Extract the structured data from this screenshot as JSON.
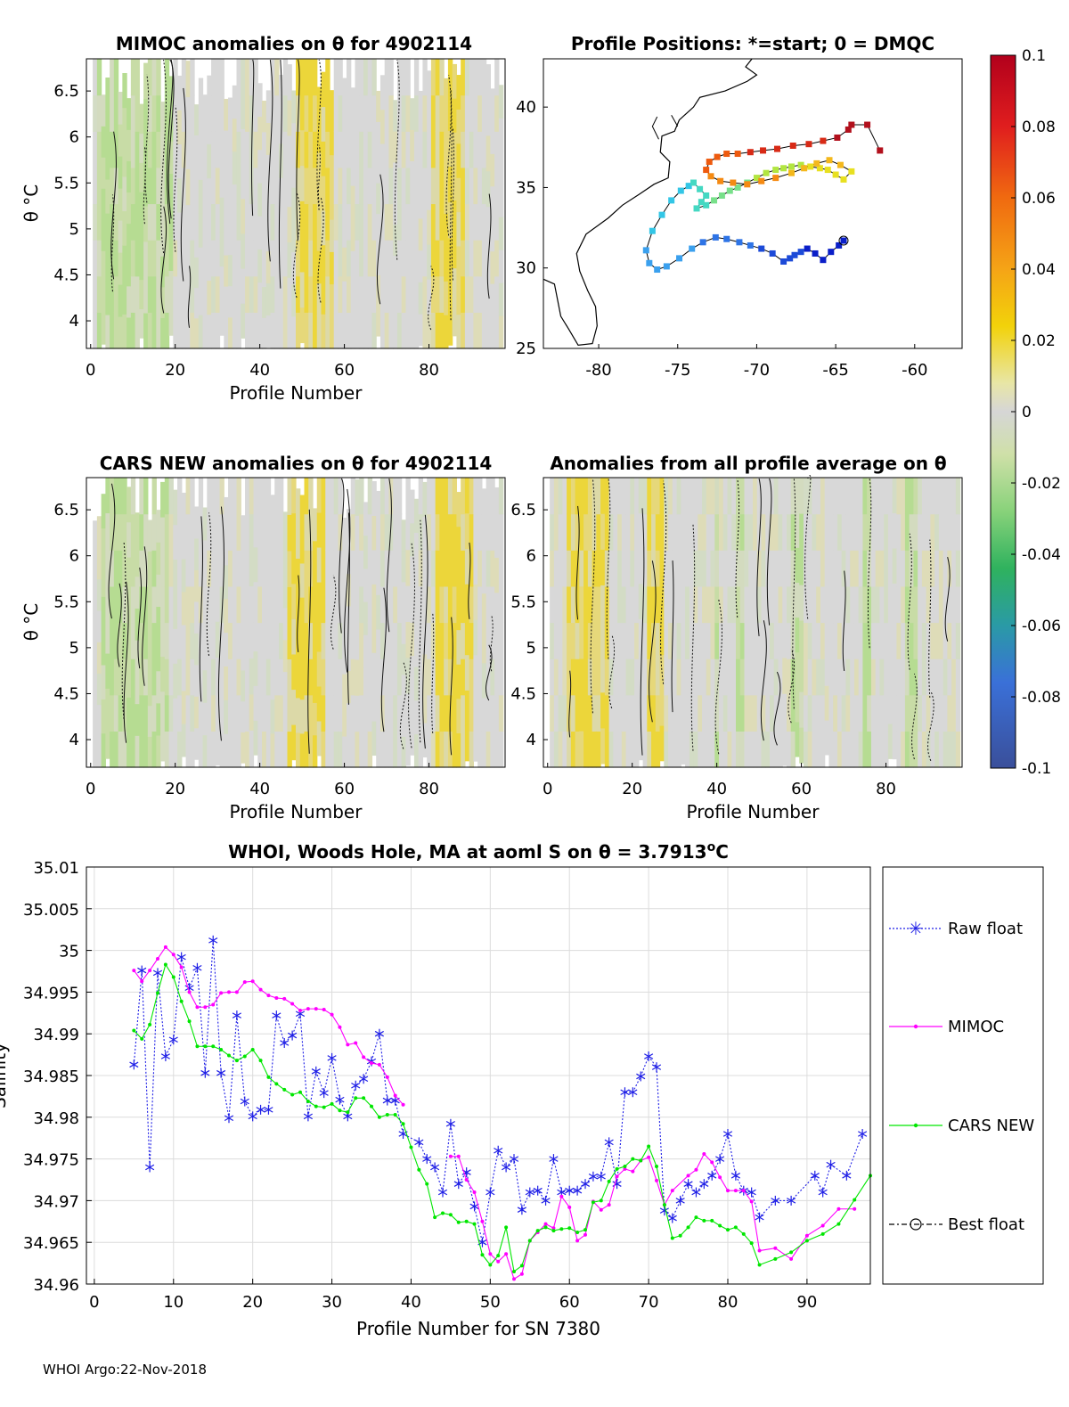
{
  "footer": "WHOI Argo:22-Nov-2018",
  "chart_data": [
    {
      "type": "heatmap",
      "id": "mimoc",
      "title": "MIMOC anomalies on θ  for 4902114",
      "xlabel": "Profile Number",
      "ylabel": "θ °C",
      "xlim": [
        -1,
        98
      ],
      "ylim": [
        3.7,
        6.85
      ],
      "xticks": [
        0,
        20,
        40,
        60,
        80
      ],
      "yticks": [
        4,
        4.5,
        5,
        5.5,
        6,
        6.5
      ],
      "warm_columns": [
        49,
        50,
        51,
        52,
        53,
        54,
        55,
        56,
        57,
        81,
        82,
        83,
        84,
        85,
        86,
        87,
        88
      ],
      "cool_columns": [
        2,
        3,
        4,
        5,
        6,
        7,
        8,
        9,
        10,
        11,
        12,
        13,
        14,
        15,
        16,
        17,
        18,
        19
      ]
    },
    {
      "type": "heatmap",
      "id": "cars",
      "title": "CARS NEW anomalies on θ for 4902114",
      "xlabel": "Profile Number",
      "ylabel": "θ °C",
      "xlim": [
        -1,
        98
      ],
      "ylim": [
        3.7,
        6.85
      ],
      "xticks": [
        0,
        20,
        40,
        60,
        80
      ],
      "yticks": [
        4,
        4.5,
        5,
        5.5,
        6,
        6.5
      ],
      "warm_columns": [
        47,
        48,
        49,
        50,
        51,
        52,
        53,
        54,
        55,
        82,
        83,
        84,
        85,
        86,
        87,
        88,
        89,
        90
      ],
      "cool_columns": [
        3,
        4,
        5,
        6,
        7,
        8,
        9,
        10,
        11,
        12,
        13,
        14,
        15,
        16,
        17,
        18
      ]
    },
    {
      "type": "heatmap",
      "id": "allprof",
      "title": "Anomalies from all profile average on θ",
      "xlabel": "Profile Number",
      "ylabel": "",
      "xlim": [
        -1,
        98
      ],
      "ylim": [
        3.7,
        6.85
      ],
      "xticks": [
        0,
        20,
        40,
        60,
        80
      ],
      "yticks": [
        4,
        4.5,
        5,
        5.5,
        6,
        6.5
      ],
      "warm_columns": [
        5,
        6,
        7,
        8,
        9,
        10,
        11,
        12,
        13,
        14,
        24,
        25,
        26,
        27
      ],
      "cool_columns": [
        40,
        45,
        46,
        58,
        59,
        60,
        75,
        76,
        85,
        86,
        87
      ]
    },
    {
      "type": "scatter",
      "id": "map",
      "title": "Profile Positions: *=start; 0 = DMQC",
      "xlim": [
        -83.5,
        -57
      ],
      "ylim": [
        25,
        43
      ],
      "xticks": [
        -80,
        -75,
        -70,
        -65,
        -60
      ],
      "yticks": [
        25,
        30,
        35,
        40
      ],
      "track_lon": [
        -64.5,
        -64.8,
        -65.3,
        -65.8,
        -66.3,
        -66.8,
        -67.2,
        -67.6,
        -67.9,
        -68.3,
        -69.0,
        -69.7,
        -70.4,
        -71.1,
        -71.9,
        -72.6,
        -73.4,
        -74.1,
        -74.9,
        -75.7,
        -76.3,
        -76.8,
        -77.0,
        -76.6,
        -76.0,
        -75.4,
        -74.8,
        -74.3,
        -74.0,
        -73.6,
        -73.2,
        -73.5,
        -73.8,
        -73.2,
        -72.7,
        -72.2,
        -71.7,
        -71.2,
        -70.6,
        -70.0,
        -69.4,
        -68.8,
        -68.3,
        -67.8,
        -67.2,
        -66.6,
        -66.0,
        -65.5,
        -65.0,
        -64.5,
        -64.0,
        -64.7,
        -65.4,
        -66.2,
        -67.0,
        -67.8,
        -68.8,
        -69.7,
        -70.6,
        -71.5,
        -72.3,
        -72.9,
        -73.2,
        -73.0,
        -72.5,
        -71.9,
        -71.2,
        -70.4,
        -69.6,
        -68.7,
        -67.7,
        -66.7,
        -65.8,
        -64.9,
        -64.2,
        -64.0,
        -63.0,
        -62.2
      ],
      "track_lat": [
        31.7,
        31.4,
        31.0,
        30.5,
        30.9,
        31.2,
        31.0,
        30.8,
        30.6,
        30.4,
        30.9,
        31.2,
        31.4,
        31.6,
        31.8,
        31.9,
        31.6,
        31.2,
        30.6,
        30.1,
        29.9,
        30.3,
        31.1,
        32.3,
        33.3,
        34.2,
        34.8,
        35.1,
        35.3,
        34.9,
        34.5,
        34.1,
        33.7,
        33.9,
        34.2,
        34.5,
        34.8,
        35.0,
        35.3,
        35.6,
        35.9,
        36.1,
        36.2,
        36.3,
        36.4,
        36.3,
        36.2,
        36.1,
        35.8,
        35.5,
        36.0,
        36.4,
        36.7,
        36.5,
        36.2,
        35.9,
        35.6,
        35.4,
        35.2,
        35.3,
        35.4,
        35.7,
        36.1,
        36.6,
        36.9,
        37.1,
        37.1,
        37.2,
        37.3,
        37.4,
        37.6,
        37.7,
        37.9,
        38.1,
        38.6,
        38.9,
        38.9,
        37.3
      ],
      "colorbar": {
        "min": -0.1,
        "max": 0.1,
        "ticks": [
          "0.1",
          "0.08",
          "0.06",
          "0.04",
          "0.02",
          "0",
          "-0.02",
          "-0.04",
          "-0.06",
          "-0.08",
          "-0.1"
        ]
      }
    },
    {
      "type": "line",
      "id": "salinity",
      "title": "WHOI, Woods Hole, MA at aoml S on θ = 3.7913",
      "title_sup": "o",
      "title_end": "C",
      "xlabel": "Profile Number for SN 7380",
      "ylabel": "Salinity",
      "xlim": [
        -1,
        98
      ],
      "ylim": [
        34.96,
        35.01
      ],
      "xticks": [
        0,
        10,
        20,
        30,
        40,
        50,
        60,
        70,
        80,
        90
      ],
      "yticks": [
        "35.01",
        "35.005",
        "35",
        "34.995",
        "34.99",
        "34.985",
        "34.98",
        "34.975",
        "34.97",
        "34.965",
        "34.96"
      ],
      "ytick_values": [
        35.01,
        35.005,
        35,
        34.995,
        34.99,
        34.985,
        34.98,
        34.975,
        34.97,
        34.965,
        34.96
      ],
      "legend": [
        "Raw float",
        "MIMOC",
        "CARS NEW",
        "Best float"
      ],
      "series": [
        {
          "name": "Raw float",
          "x": [
            5,
            6,
            7,
            8,
            9,
            10,
            11,
            12,
            13,
            14,
            15,
            16,
            17,
            18,
            19,
            20,
            21,
            22,
            23,
            24,
            25,
            26,
            27,
            28,
            29,
            30,
            31,
            32,
            33,
            34,
            35,
            36,
            37,
            38,
            39,
            41,
            42,
            43,
            44,
            45,
            46,
            47,
            48,
            49,
            50,
            51,
            52,
            53,
            54,
            55,
            56,
            57,
            58,
            59,
            60,
            61,
            62,
            63,
            64,
            65,
            66,
            67,
            68,
            69,
            70,
            71,
            72,
            73,
            74,
            75,
            76,
            77,
            78,
            79,
            80,
            81,
            82,
            83,
            84,
            86,
            88,
            91,
            92,
            93,
            95,
            97
          ],
          "values": [
            34.9863,
            34.9976,
            34.974,
            34.9973,
            34.9873,
            34.9893,
            34.9992,
            34.9955,
            34.9979,
            34.9853,
            35.0012,
            34.9853,
            34.9799,
            34.9922,
            34.9819,
            34.9801,
            34.9809,
            34.9809,
            34.9922,
            34.9889,
            34.9898,
            34.9924,
            34.9801,
            34.9855,
            34.9829,
            34.9871,
            34.9821,
            34.9801,
            34.9838,
            34.9846,
            34.9867,
            34.99,
            34.982,
            34.982,
            34.978,
            34.977,
            34.975,
            34.974,
            34.971,
            34.9792,
            34.972,
            34.9734,
            34.9693,
            34.965,
            34.971,
            34.976,
            34.974,
            34.975,
            34.9689,
            34.971,
            34.9712,
            34.97,
            34.975,
            34.971,
            34.9712,
            34.9712,
            34.972,
            34.9729,
            34.9729,
            34.977,
            34.972,
            34.983,
            34.983,
            34.9849,
            34.9873,
            34.986,
            34.9688,
            34.9679,
            34.97,
            34.972,
            34.971,
            34.972,
            34.973,
            34.975,
            34.978,
            34.973,
            34.9712,
            34.971,
            34.968,
            34.97,
            34.97,
            34.973,
            34.971,
            34.9743,
            34.973,
            34.978
          ]
        },
        {
          "name": "MIMOC",
          "x": [
            5,
            6,
            7,
            8,
            9,
            10,
            11,
            12,
            13,
            14,
            15,
            16,
            17,
            18,
            19,
            20,
            21,
            22,
            23,
            24,
            25,
            26,
            27,
            28,
            29,
            30,
            31,
            32,
            33,
            34,
            35,
            36,
            37,
            38,
            39,
            45,
            46,
            47,
            48,
            49,
            50,
            51,
            52,
            53,
            54,
            55,
            56,
            57,
            58,
            59,
            60,
            61,
            62,
            63,
            64,
            65,
            66,
            67,
            68,
            69,
            70,
            71,
            72,
            73,
            75,
            76,
            77,
            78,
            79,
            80,
            81,
            82,
            83,
            84,
            86,
            88,
            90,
            92,
            94,
            96
          ],
          "values": [
            34.9976,
            34.9963,
            34.9976,
            34.999,
            35.0004,
            34.9995,
            34.998,
            34.995,
            34.9932,
            34.9932,
            34.9935,
            34.9949,
            34.995,
            34.995,
            34.9962,
            34.9963,
            34.9953,
            34.9946,
            34.9943,
            34.9942,
            34.9936,
            34.9928,
            34.993,
            34.993,
            34.9929,
            34.9923,
            34.9908,
            34.9887,
            34.9889,
            34.9872,
            34.9865,
            34.9863,
            34.9848,
            34.9826,
            34.9815,
            34.9753,
            34.9753,
            34.9725,
            34.971,
            34.9675,
            34.9636,
            34.9627,
            34.9636,
            34.9606,
            34.9612,
            34.9652,
            34.9662,
            34.9672,
            34.9667,
            34.9705,
            34.9692,
            34.9652,
            34.9659,
            34.9699,
            34.9689,
            34.9695,
            34.9729,
            34.9738,
            34.9735,
            34.9748,
            34.9752,
            34.9724,
            34.9695,
            34.9712,
            34.973,
            34.9737,
            34.9756,
            34.9746,
            34.9728,
            34.9712,
            34.9712,
            34.9712,
            34.9699,
            34.964,
            34.9643,
            34.963,
            34.9658,
            34.967,
            34.969,
            34.969
          ]
        },
        {
          "name": "CARS NEW",
          "x": [
            5,
            6,
            7,
            8,
            9,
            10,
            11,
            12,
            13,
            14,
            15,
            16,
            17,
            18,
            19,
            20,
            21,
            22,
            23,
            24,
            25,
            26,
            27,
            28,
            29,
            30,
            31,
            32,
            33,
            34,
            35,
            36,
            37,
            38,
            39,
            40,
            41,
            42,
            43,
            44,
            45,
            46,
            47,
            48,
            49,
            50,
            51,
            52,
            53,
            54,
            55,
            56,
            57,
            58,
            59,
            60,
            61,
            62,
            63,
            64,
            65,
            66,
            67,
            68,
            69,
            70,
            71,
            72,
            73,
            74,
            75,
            76,
            77,
            78,
            79,
            80,
            81,
            82,
            83,
            84,
            86,
            88,
            90,
            92,
            94,
            96,
            98
          ],
          "values": [
            34.9904,
            34.9894,
            34.9911,
            34.9949,
            34.9983,
            34.9968,
            34.9939,
            34.9915,
            34.9885,
            34.9885,
            34.9885,
            34.9881,
            34.9874,
            34.9868,
            34.9873,
            34.9881,
            34.9868,
            34.9848,
            34.984,
            34.9833,
            34.9827,
            34.983,
            34.9819,
            34.9813,
            34.9812,
            34.9816,
            34.9808,
            34.9806,
            34.9823,
            34.9823,
            34.9813,
            34.98,
            34.9803,
            34.9803,
            34.9792,
            34.9764,
            34.9737,
            34.972,
            34.968,
            34.9685,
            34.9683,
            34.9674,
            34.9675,
            34.9672,
            34.9635,
            34.9623,
            34.9634,
            34.9668,
            34.9615,
            34.9622,
            34.9652,
            34.9664,
            34.9668,
            34.9664,
            34.9666,
            34.9667,
            34.9662,
            34.9665,
            34.9698,
            34.97,
            34.9723,
            34.9738,
            34.9741,
            34.975,
            34.9748,
            34.9765,
            34.9741,
            34.9695,
            34.9655,
            34.9658,
            34.9668,
            34.968,
            34.9676,
            34.9676,
            34.967,
            34.9665,
            34.9668,
            34.966,
            34.9649,
            34.9623,
            34.963,
            34.9638,
            34.9652,
            34.966,
            34.9672,
            34.9701,
            34.973
          ]
        },
        {
          "name": "Best float",
          "x": [],
          "values": []
        }
      ]
    }
  ]
}
